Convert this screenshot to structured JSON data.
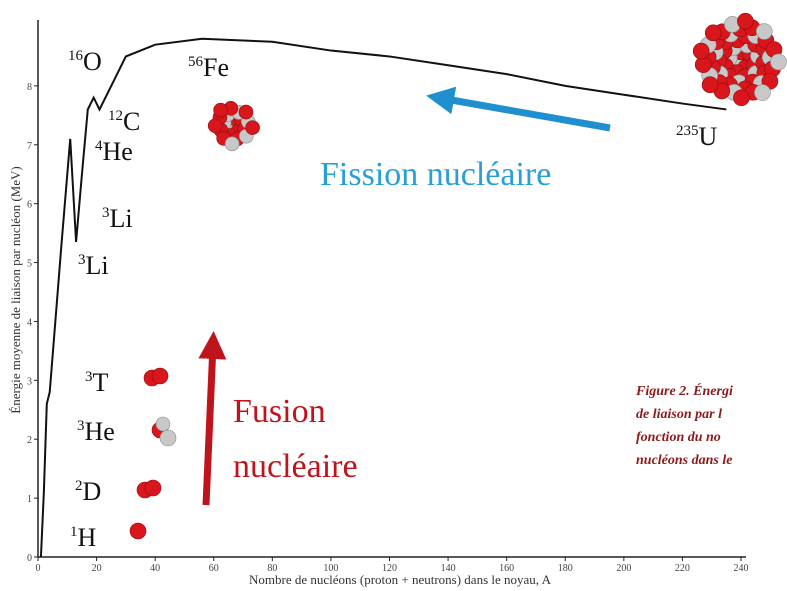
{
  "chart_data": {
    "type": "line",
    "x_label": "Nombre de nucléons (proton + neutrons) dans le noyau, A",
    "y_label": "Énergie moyenne de liaison par nucléon (MeV)",
    "x": [
      1,
      2,
      3,
      4,
      8,
      11,
      13,
      15,
      17,
      19,
      21,
      25,
      30,
      40,
      56,
      80,
      100,
      120,
      140,
      160,
      180,
      200,
      220,
      235
    ],
    "series": [
      {
        "color": "#111111",
        "values": [
          0,
          1.1,
          2.6,
          2.8,
          5.3,
          7.1,
          5.35,
          6.5,
          7.6,
          7.8,
          7.6,
          8.0,
          8.5,
          8.7,
          8.8,
          8.75,
          8.6,
          8.5,
          8.35,
          8.2,
          8.0,
          7.85,
          7.7,
          7.6
        ]
      }
    ],
    "xlim": [
      0,
      240
    ],
    "ylim": [
      0,
      9
    ],
    "xticks": [
      0,
      20,
      40,
      60,
      80,
      100,
      120,
      140,
      160,
      180,
      200,
      220,
      240
    ],
    "yticks": [
      0,
      1,
      2,
      3,
      4,
      5,
      6,
      7,
      8
    ],
    "isotopes": [
      {
        "mass": "16",
        "symbol": "O"
      },
      {
        "mass": "56",
        "symbol": "Fe"
      },
      {
        "mass": "12",
        "symbol": "C"
      },
      {
        "mass": "4",
        "symbol": "He"
      },
      {
        "mass": "3",
        "symbol": "Li"
      },
      {
        "mass": "3",
        "symbol": "Li"
      },
      {
        "mass": "235",
        "symbol": "U"
      },
      {
        "mass": "3",
        "symbol": "T"
      },
      {
        "mass": "3",
        "symbol": "He"
      },
      {
        "mass": "2",
        "symbol": "D"
      },
      {
        "mass": "1",
        "symbol": "H"
      }
    ],
    "fission_label": "Fission nucléaire",
    "fusion_label": [
      "Fusion",
      "nucléaire"
    ],
    "caption": [
      "Figure 2. Énergi",
      "de liaison par l",
      "fonction du no",
      "nucléons dans le"
    ]
  }
}
